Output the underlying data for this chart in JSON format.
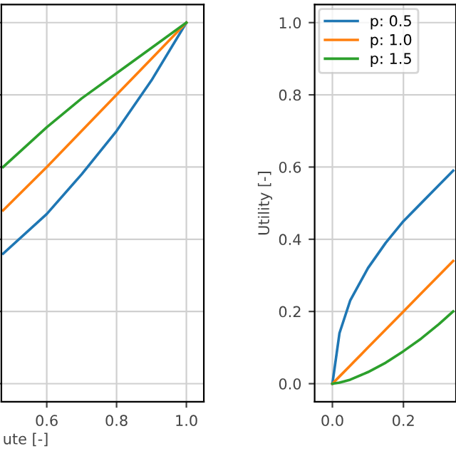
{
  "chart_data": [
    {
      "type": "line",
      "xlabel": "ute [-]",
      "x": [
        0.475,
        0.6,
        0.7,
        0.8,
        0.9,
        1.0
      ],
      "series": [
        {
          "color": "#1f77b4",
          "values": [
            0.36,
            0.47,
            0.58,
            0.7,
            0.84,
            1.0
          ]
        },
        {
          "color": "#ff7f0e",
          "values": [
            0.48,
            0.6,
            0.7,
            0.8,
            0.9,
            1.0
          ]
        },
        {
          "color": "#2ca02c",
          "values": [
            0.6,
            0.71,
            0.79,
            0.86,
            0.93,
            1.0
          ]
        }
      ],
      "xlim": [
        0.47,
        1.05
      ],
      "xticks": [
        {
          "value": 0.6,
          "label": "0.6"
        },
        {
          "value": 0.8,
          "label": "0.8"
        },
        {
          "value": 1.0,
          "label": "1.0"
        }
      ],
      "ylim": [
        -0.05,
        1.05
      ],
      "yticks": [
        0.0,
        0.2,
        0.4,
        0.6,
        0.8,
        1.0
      ],
      "tick_labels": "x",
      "grid": true,
      "legend": false
    },
    {
      "type": "line",
      "ylabel": "Utility [-]",
      "x": [
        0,
        0.02,
        0.05,
        0.1,
        0.15,
        0.2,
        0.25,
        0.3,
        0.34
      ],
      "series": [
        {
          "name": "p: 0.5",
          "color": "#1f77b4",
          "values": [
            0,
            0.14,
            0.23,
            0.32,
            0.39,
            0.45,
            0.5,
            0.55,
            0.59
          ]
        },
        {
          "name": "p: 1.0",
          "color": "#ff7f0e",
          "values": [
            0,
            0.02,
            0.05,
            0.1,
            0.15,
            0.2,
            0.25,
            0.3,
            0.34
          ]
        },
        {
          "name": "p: 1.5",
          "color": "#2ca02c",
          "values": [
            0,
            0.003,
            0.011,
            0.032,
            0.058,
            0.09,
            0.125,
            0.165,
            0.2
          ]
        }
      ],
      "xlim": [
        -0.05,
        0.348
      ],
      "xticks": [
        {
          "value": 0.0,
          "label": "0.0"
        },
        {
          "value": 0.2,
          "label": "0.2"
        }
      ],
      "ylim": [
        -0.05,
        1.05
      ],
      "yticks": [
        {
          "value": 0.0,
          "label": "0.0"
        },
        {
          "value": 0.2,
          "label": "0.2"
        },
        {
          "value": 0.4,
          "label": "0.4"
        },
        {
          "value": 0.6,
          "label": "0.6"
        },
        {
          "value": 0.8,
          "label": "0.8"
        },
        {
          "value": 1.0,
          "label": "1.0"
        }
      ],
      "grid": true,
      "legend": "top left"
    }
  ]
}
